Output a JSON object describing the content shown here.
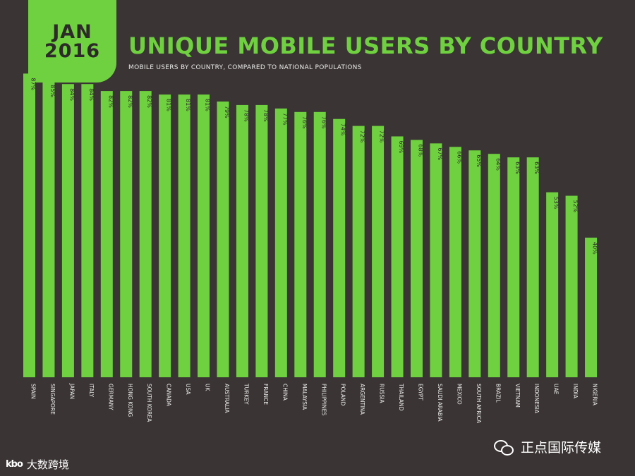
{
  "badge": {
    "line1": "JAN",
    "line2": "2016"
  },
  "header": {
    "title": "UNIQUE MOBILE USERS BY COUNTRY",
    "subtitle": "MOBILE USERS BY COUNTRY, COMPARED TO NATIONAL POPULATIONS"
  },
  "colors": {
    "background": "#3a3534",
    "bar": "#6fd13f",
    "label": "#e8e8e8"
  },
  "chart_data": {
    "type": "bar",
    "title": "UNIQUE MOBILE USERS BY COUNTRY",
    "subtitle": "MOBILE USERS BY COUNTRY, COMPARED TO NATIONAL POPULATIONS",
    "xlabel": "",
    "ylabel": "",
    "ylim": [
      0,
      100
    ],
    "grid": false,
    "categories": [
      "SPAIN",
      "SINGAPORE",
      "JAPAN",
      "ITALY",
      "GERMANY",
      "HONG KONG",
      "SOUTH KOREA",
      "CANADA",
      "USA",
      "UK",
      "AUSTRALIA",
      "TURKEY",
      "FRANCE",
      "CHINA",
      "MALAYSIA",
      "PHILIPPINES",
      "POLAND",
      "ARGENTINA",
      "RUSSIA",
      "THAILAND",
      "EGYPT",
      "SAUDI ARABIA",
      "MEXICO",
      "SOUTH AFRICA",
      "BRAZIL",
      "VIETNAM",
      "INDONESIA",
      "UAE",
      "INDIA",
      "NIGERIA"
    ],
    "values": [
      87,
      85,
      84,
      84,
      82,
      82,
      82,
      81,
      81,
      81,
      79,
      78,
      78,
      77,
      76,
      76,
      74,
      72,
      72,
      69,
      68,
      67,
      66,
      65,
      64,
      63,
      63,
      53,
      52,
      40
    ],
    "value_labels": [
      "87%",
      "85%",
      "84%",
      "84%",
      "82%",
      "82%",
      "82%",
      "81%",
      "81%",
      "81%",
      "79%",
      "78%",
      "78%",
      "77%",
      "76%",
      "76%",
      "74%",
      "72%",
      "72%",
      "69%",
      "68%",
      "67%",
      "66%",
      "65%",
      "64%",
      "63%",
      "63%",
      "53%",
      "52%",
      "40%"
    ]
  },
  "watermarks": {
    "left_logo": "kbo",
    "left_text": "大数跨境",
    "right_text": "正点国际传媒",
    "right_icon": "wechat-icon"
  }
}
